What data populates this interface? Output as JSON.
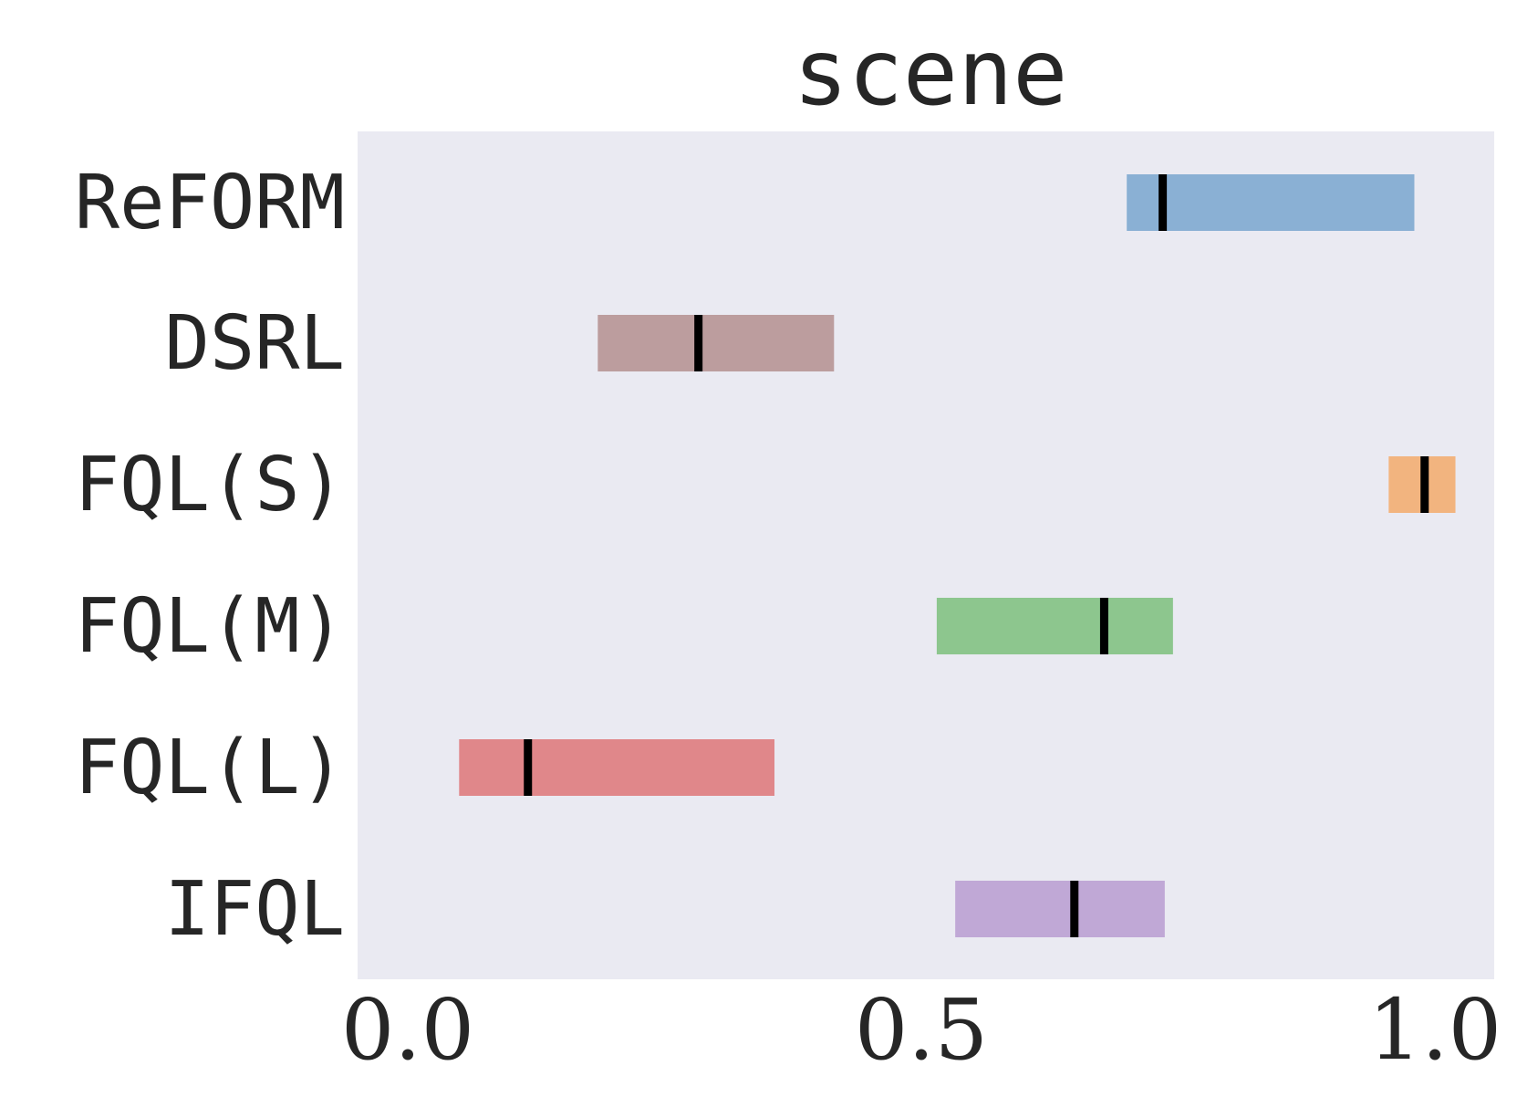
{
  "chart_data": {
    "type": "bar",
    "subtype": "range",
    "title": "scene",
    "xlabel": "",
    "ylabel": "",
    "xlim": [
      0.0,
      1.0
    ],
    "x_ticks": [
      "0.0",
      "0.5",
      "1.0"
    ],
    "x_tick_values": [
      0.0,
      0.5,
      1.0
    ],
    "grid": false,
    "background_color": "#eaeaf2",
    "categories": [
      "ReFORM",
      "DSRL",
      "FQL(S)",
      "FQL(M)",
      "FQL(L)",
      "IFQL"
    ],
    "series": [
      {
        "category": "ReFORM",
        "low": 0.7,
        "high": 0.98,
        "median": 0.735,
        "color": "#8ab0d4"
      },
      {
        "category": "DSRL",
        "low": 0.185,
        "high": 0.415,
        "median": 0.283,
        "color": "#bc9d9e"
      },
      {
        "category": "FQL(S)",
        "low": 0.955,
        "high": 1.02,
        "median": 0.99,
        "color": "#f2b47f"
      },
      {
        "category": "FQL(M)",
        "low": 0.515,
        "high": 0.745,
        "median": 0.678,
        "color": "#8dc68e"
      },
      {
        "category": "FQL(L)",
        "low": 0.05,
        "high": 0.357,
        "median": 0.117,
        "color": "#e0878a"
      },
      {
        "category": "IFQL",
        "low": 0.533,
        "high": 0.737,
        "median": 0.649,
        "color": "#c0a8d6"
      }
    ]
  }
}
